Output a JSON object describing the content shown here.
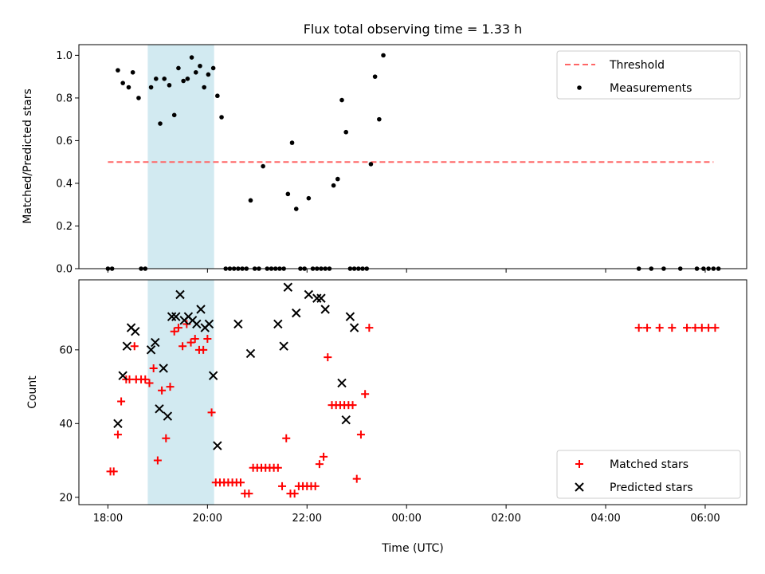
{
  "chart_data": [
    {
      "type": "scatter",
      "title": "Flux total observing time = 1.33 h",
      "xlabel": "",
      "ylabel": "Matched/Predicted stars",
      "ylim": [
        0,
        1.05
      ],
      "xlim": [
        "17:25",
        "06:50"
      ],
      "xticks": [
        "18:00",
        "20:00",
        "22:00",
        "00:00",
        "02:00",
        "04:00",
        "06:00"
      ],
      "show_xtick_labels": false,
      "yticks": [
        "0.0",
        "0.2",
        "0.4",
        "0.6",
        "0.8",
        "1.0"
      ],
      "highlight_span": {
        "start": "18:48",
        "end": "20:08",
        "color": "#add8e6"
      },
      "legend": {
        "position": "upper right",
        "entries": [
          {
            "label": "Threshold"
          },
          {
            "label": "Measurements"
          }
        ]
      },
      "threshold": {
        "name": "Threshold",
        "y": 0.5,
        "x_start": "18:00",
        "x_end": "06:10",
        "color": "#ff6666"
      },
      "series": [
        {
          "name": "Measurements",
          "color": "#000000",
          "points": [
            [
              "18:00",
              0
            ],
            [
              "18:05",
              0
            ],
            [
              "18:12",
              0.93
            ],
            [
              "18:18",
              0.87
            ],
            [
              "18:25",
              0.85
            ],
            [
              "18:30",
              0.92
            ],
            [
              "18:37",
              0.8
            ],
            [
              "18:40",
              0
            ],
            [
              "18:45",
              0
            ],
            [
              "18:52",
              0.85
            ],
            [
              "18:58",
              0.89
            ],
            [
              "19:03",
              0.68
            ],
            [
              "19:08",
              0.89
            ],
            [
              "19:14",
              0.86
            ],
            [
              "19:20",
              0.72
            ],
            [
              "19:25",
              0.94
            ],
            [
              "19:31",
              0.88
            ],
            [
              "19:36",
              0.89
            ],
            [
              "19:41",
              0.99
            ],
            [
              "19:46",
              0.92
            ],
            [
              "19:51",
              0.95
            ],
            [
              "19:56",
              0.85
            ],
            [
              "20:01",
              0.91
            ],
            [
              "20:07",
              0.94
            ],
            [
              "20:12",
              0.81
            ],
            [
              "20:17",
              0.71
            ],
            [
              "20:22",
              0
            ],
            [
              "20:27",
              0
            ],
            [
              "20:32",
              0
            ],
            [
              "20:37",
              0
            ],
            [
              "20:42",
              0
            ],
            [
              "20:47",
              0
            ],
            [
              "20:52",
              0.32
            ],
            [
              "20:57",
              0
            ],
            [
              "21:02",
              0
            ],
            [
              "21:07",
              0.48
            ],
            [
              "21:12",
              0
            ],
            [
              "21:17",
              0
            ],
            [
              "21:22",
              0
            ],
            [
              "21:27",
              0
            ],
            [
              "21:32",
              0
            ],
            [
              "21:37",
              0.35
            ],
            [
              "21:42",
              0.59
            ],
            [
              "21:47",
              0.28
            ],
            [
              "21:52",
              0
            ],
            [
              "21:57",
              0
            ],
            [
              "22:02",
              0.33
            ],
            [
              "22:07",
              0
            ],
            [
              "22:12",
              0
            ],
            [
              "22:17",
              0
            ],
            [
              "22:22",
              0
            ],
            [
              "22:27",
              0
            ],
            [
              "22:32",
              0.39
            ],
            [
              "22:37",
              0.42
            ],
            [
              "22:42",
              0.79
            ],
            [
              "22:47",
              0.64
            ],
            [
              "22:52",
              0
            ],
            [
              "22:57",
              0
            ],
            [
              "23:02",
              0
            ],
            [
              "23:07",
              0
            ],
            [
              "23:12",
              0
            ],
            [
              "23:17",
              0.49
            ],
            [
              "23:22",
              0.9
            ],
            [
              "23:27",
              0.7
            ],
            [
              "23:32",
              1.0
            ],
            [
              "04:40",
              0
            ],
            [
              "04:55",
              0
            ],
            [
              "05:10",
              0
            ],
            [
              "05:30",
              0
            ],
            [
              "05:50",
              0
            ],
            [
              "05:58",
              0
            ],
            [
              "06:04",
              0
            ],
            [
              "06:10",
              0
            ],
            [
              "06:16",
              0
            ]
          ]
        }
      ]
    },
    {
      "type": "scatter",
      "title": "",
      "xlabel": "Time (UTC)",
      "ylabel": "Count",
      "ylim": [
        18,
        79
      ],
      "xlim": [
        "17:25",
        "06:50"
      ],
      "xticks": [
        "18:00",
        "20:00",
        "22:00",
        "00:00",
        "02:00",
        "04:00",
        "06:00"
      ],
      "show_xtick_labels": true,
      "yticks": [
        "20",
        "40",
        "60"
      ],
      "highlight_span": {
        "start": "18:48",
        "end": "20:08",
        "color": "#add8e6"
      },
      "legend": {
        "position": "lower right",
        "entries": [
          {
            "label": "Matched stars"
          },
          {
            "label": "Predicted stars"
          }
        ]
      },
      "series": [
        {
          "name": "Matched stars",
          "marker": "plus",
          "color": "#ff0000",
          "points": [
            [
              "18:03",
              27
            ],
            [
              "18:07",
              27
            ],
            [
              "18:12",
              37
            ],
            [
              "18:16",
              46
            ],
            [
              "18:22",
              52
            ],
            [
              "18:26",
              52
            ],
            [
              "18:32",
              61
            ],
            [
              "18:34",
              52
            ],
            [
              "18:40",
              52
            ],
            [
              "18:45",
              52
            ],
            [
              "18:50",
              51
            ],
            [
              "18:55",
              55
            ],
            [
              "19:00",
              30
            ],
            [
              "19:05",
              49
            ],
            [
              "19:10",
              36
            ],
            [
              "19:15",
              50
            ],
            [
              "19:20",
              65
            ],
            [
              "19:25",
              66
            ],
            [
              "19:30",
              61
            ],
            [
              "19:35",
              67
            ],
            [
              "19:40",
              62
            ],
            [
              "19:45",
              63
            ],
            [
              "19:50",
              60
            ],
            [
              "19:55",
              60
            ],
            [
              "20:00",
              63
            ],
            [
              "20:05",
              43
            ],
            [
              "20:10",
              24
            ],
            [
              "20:15",
              24
            ],
            [
              "20:20",
              24
            ],
            [
              "20:25",
              24
            ],
            [
              "20:30",
              24
            ],
            [
              "20:35",
              24
            ],
            [
              "20:40",
              24
            ],
            [
              "20:45",
              21
            ],
            [
              "20:50",
              21
            ],
            [
              "20:55",
              28
            ],
            [
              "21:00",
              28
            ],
            [
              "21:05",
              28
            ],
            [
              "21:10",
              28
            ],
            [
              "21:15",
              28
            ],
            [
              "21:20",
              28
            ],
            [
              "21:25",
              28
            ],
            [
              "21:30",
              23
            ],
            [
              "21:35",
              36
            ],
            [
              "21:40",
              21
            ],
            [
              "21:45",
              21
            ],
            [
              "21:50",
              23
            ],
            [
              "21:55",
              23
            ],
            [
              "22:00",
              23
            ],
            [
              "22:05",
              23
            ],
            [
              "22:10",
              23
            ],
            [
              "22:15",
              29
            ],
            [
              "22:20",
              31
            ],
            [
              "22:25",
              58
            ],
            [
              "22:30",
              45
            ],
            [
              "22:35",
              45
            ],
            [
              "22:40",
              45
            ],
            [
              "22:45",
              45
            ],
            [
              "22:50",
              45
            ],
            [
              "22:55",
              45
            ],
            [
              "23:00",
              25
            ],
            [
              "23:05",
              37
            ],
            [
              "23:10",
              48
            ],
            [
              "23:15",
              66
            ],
            [
              "04:40",
              66
            ],
            [
              "04:50",
              66
            ],
            [
              "05:05",
              66
            ],
            [
              "05:20",
              66
            ],
            [
              "05:38",
              66
            ],
            [
              "05:48",
              66
            ],
            [
              "05:56",
              66
            ],
            [
              "06:04",
              66
            ],
            [
              "06:12",
              66
            ]
          ]
        },
        {
          "name": "Predicted stars",
          "marker": "x",
          "color": "#000000",
          "points": [
            [
              "18:12",
              40
            ],
            [
              "18:18",
              53
            ],
            [
              "18:23",
              61
            ],
            [
              "18:28",
              66
            ],
            [
              "18:33",
              65
            ],
            [
              "18:52",
              60
            ],
            [
              "18:57",
              62
            ],
            [
              "19:02",
              44
            ],
            [
              "19:07",
              55
            ],
            [
              "19:12",
              42
            ],
            [
              "19:17",
              69
            ],
            [
              "19:22",
              69
            ],
            [
              "19:27",
              75
            ],
            [
              "19:32",
              68
            ],
            [
              "19:37",
              69
            ],
            [
              "19:42",
              68
            ],
            [
              "19:47",
              67
            ],
            [
              "19:52",
              71
            ],
            [
              "19:57",
              66
            ],
            [
              "20:02",
              67
            ],
            [
              "20:07",
              53
            ],
            [
              "20:12",
              34
            ],
            [
              "20:37",
              67
            ],
            [
              "20:52",
              59
            ],
            [
              "21:25",
              67
            ],
            [
              "21:32",
              61
            ],
            [
              "21:37",
              77
            ],
            [
              "21:47",
              70
            ],
            [
              "22:02",
              75
            ],
            [
              "22:12",
              74
            ],
            [
              "22:17",
              74
            ],
            [
              "22:22",
              71
            ],
            [
              "22:42",
              51
            ],
            [
              "22:47",
              41
            ],
            [
              "22:52",
              69
            ],
            [
              "22:57",
              66
            ]
          ]
        }
      ]
    }
  ]
}
